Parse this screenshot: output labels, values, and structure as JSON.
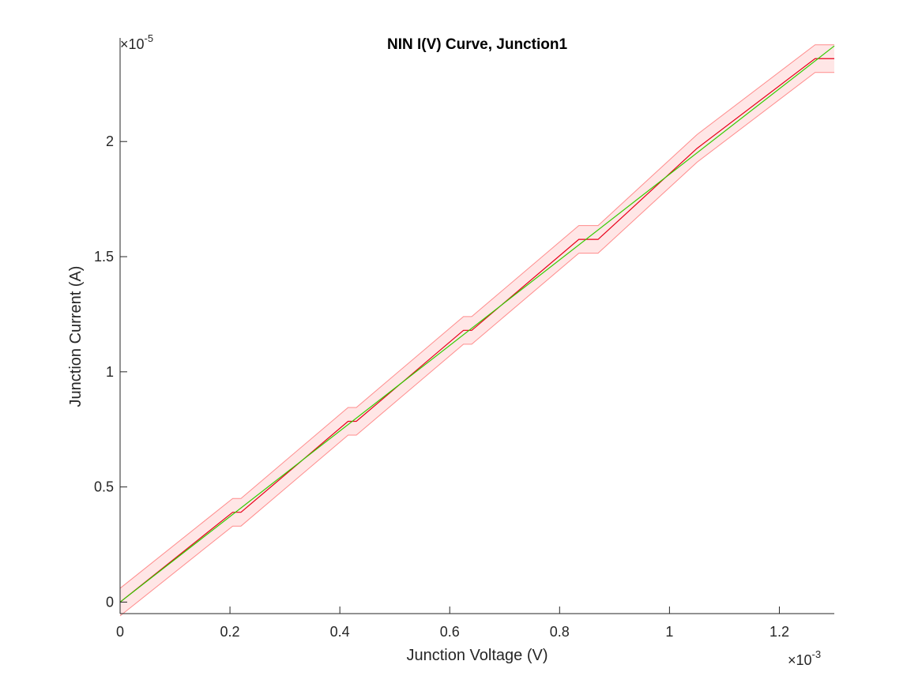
{
  "chart_data": {
    "type": "line",
    "title": "NIN I(V) Curve, Junction1",
    "xlabel": "Junction Voltage (V)",
    "ylabel": "Junction Current (A)",
    "x_exponent_label": "×10",
    "x_exponent_power": "-3",
    "y_exponent_label": "×10",
    "y_exponent_power": "-5",
    "x_scale": 0.001,
    "y_scale": 1e-05,
    "xlim": [
      0,
      1.3
    ],
    "ylim": [
      -0.05,
      2.45
    ],
    "x_ticks": [
      0,
      0.2,
      0.4,
      0.6,
      0.8,
      1.0,
      1.2
    ],
    "x_tick_labels": [
      "0",
      "0.2",
      "0.4",
      "0.6",
      "0.8",
      "1",
      "1.2"
    ],
    "y_ticks": [
      0,
      0.5,
      1.0,
      1.5,
      2.0
    ],
    "y_tick_labels": [
      "0",
      "0.5",
      "1",
      "1.5",
      "2"
    ],
    "grid": false,
    "box": false,
    "colors": {
      "measured": "#e8001a",
      "fit": "#33cc00",
      "band_fill": "#ffe6e6",
      "band_edge": "#ff8c8c",
      "axis": "#262626"
    },
    "band_halfwidth": 0.06,
    "series": [
      {
        "x": [
          0,
          0.205,
          0.22,
          0.415,
          0.43,
          0.625,
          0.64,
          0.835,
          0.87,
          1.05,
          1.265,
          1.3
        ],
        "y": [
          0,
          0.39,
          0.39,
          0.785,
          0.785,
          1.18,
          1.18,
          1.575,
          1.575,
          1.97,
          2.36,
          2.36
        ]
      },
      {
        "x": [
          0,
          1.3
        ],
        "y": [
          0,
          2.415
        ]
      }
    ]
  }
}
